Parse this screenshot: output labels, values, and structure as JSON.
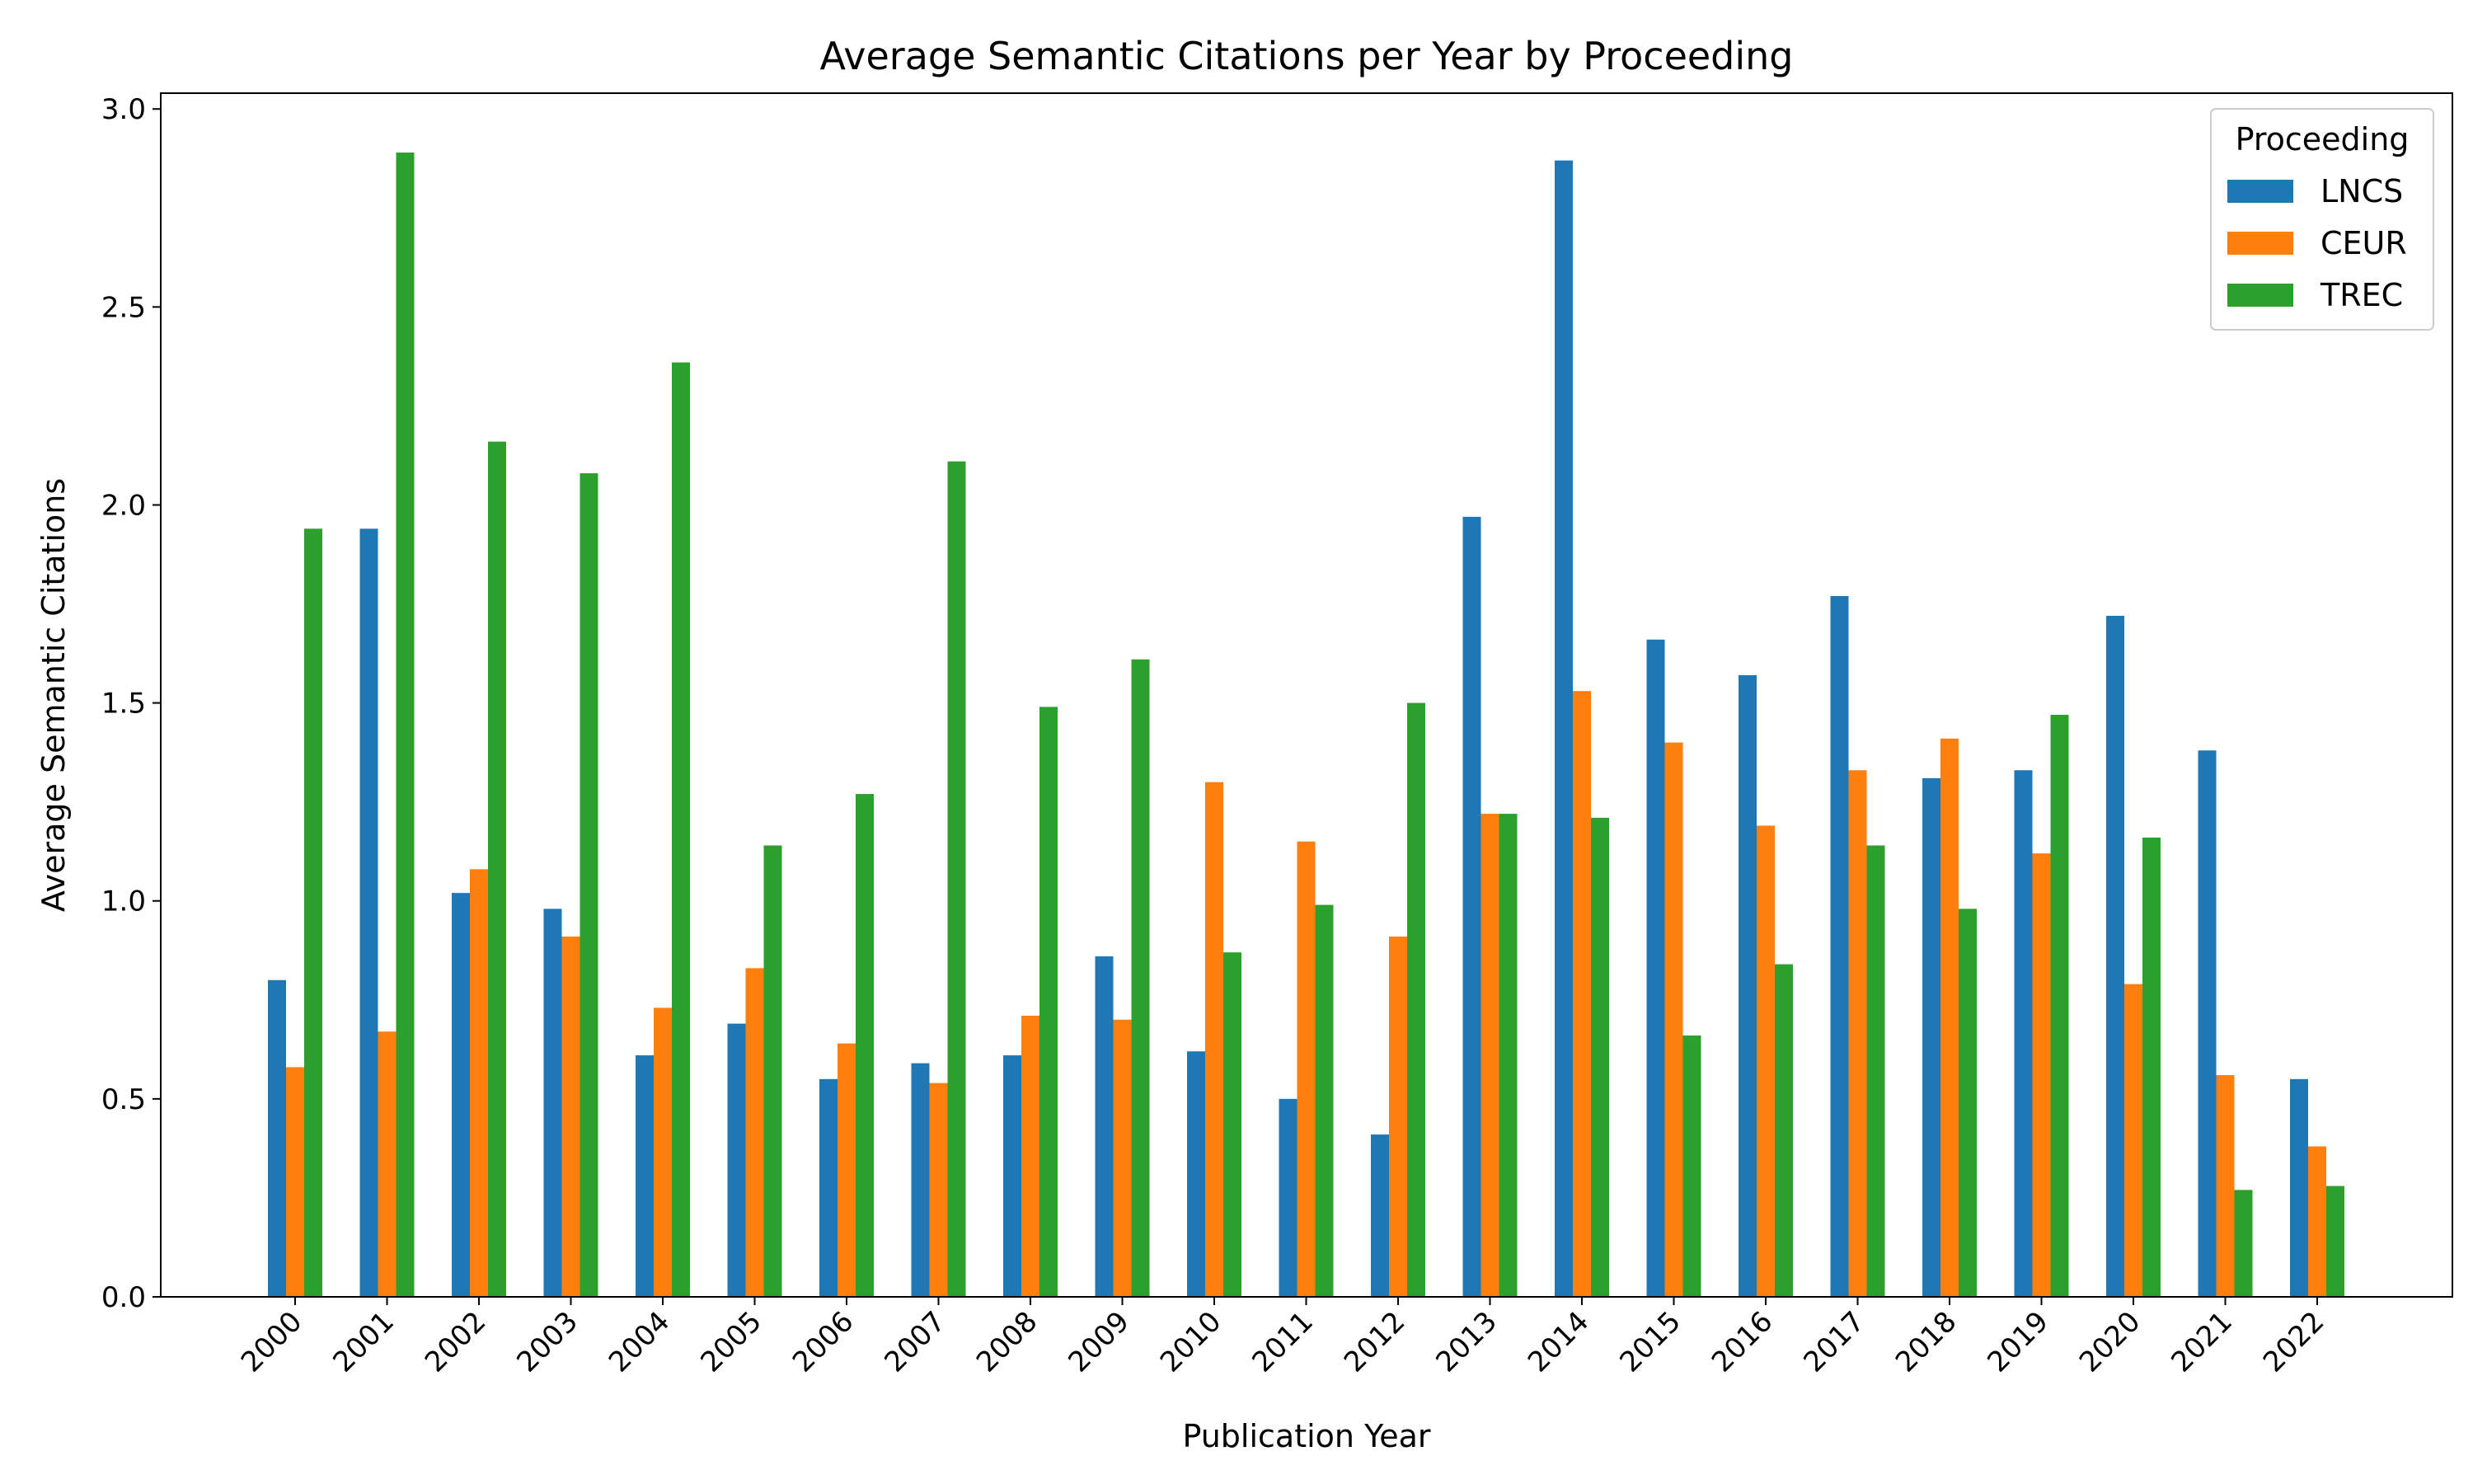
{
  "chart_data": {
    "type": "bar",
    "title": "Average Semantic Citations per Year by Proceeding",
    "xlabel": "Publication Year",
    "ylabel": "Average Semantic Citations",
    "ylim": [
      0,
      3.04
    ],
    "yticks": [
      "0.0",
      "0.5",
      "1.0",
      "1.5",
      "2.0",
      "2.5",
      "3.0"
    ],
    "categories": [
      "2000",
      "2001",
      "2002",
      "2003",
      "2004",
      "2005",
      "2006",
      "2007",
      "2008",
      "2009",
      "2010",
      "2011",
      "2012",
      "2013",
      "2014",
      "2015",
      "2016",
      "2017",
      "2018",
      "2019",
      "2020",
      "2021",
      "2022"
    ],
    "legend_title": "Proceeding",
    "legend_position": "top-right",
    "grid": false,
    "series": [
      {
        "name": "LNCS",
        "color": "#1f77b4",
        "values": [
          0.8,
          1.94,
          1.02,
          0.98,
          0.61,
          0.69,
          0.55,
          0.59,
          0.61,
          0.86,
          0.62,
          0.5,
          0.41,
          1.97,
          2.87,
          1.66,
          1.57,
          1.77,
          1.31,
          1.33,
          1.72,
          1.38,
          0.55
        ]
      },
      {
        "name": "CEUR",
        "color": "#ff7f0e",
        "values": [
          0.58,
          0.67,
          1.08,
          0.91,
          0.73,
          0.83,
          0.64,
          0.54,
          0.71,
          0.7,
          1.3,
          1.15,
          0.91,
          1.22,
          1.53,
          1.4,
          1.19,
          1.33,
          1.41,
          1.12,
          0.79,
          0.56,
          0.38
        ]
      },
      {
        "name": "TREC",
        "color": "#2ca02c",
        "values": [
          1.94,
          2.89,
          2.16,
          2.08,
          2.36,
          1.14,
          1.27,
          2.11,
          1.49,
          1.61,
          0.87,
          0.99,
          1.5,
          1.22,
          1.21,
          0.66,
          0.84,
          1.14,
          0.98,
          1.47,
          1.16,
          0.27,
          0.28
        ]
      }
    ]
  }
}
